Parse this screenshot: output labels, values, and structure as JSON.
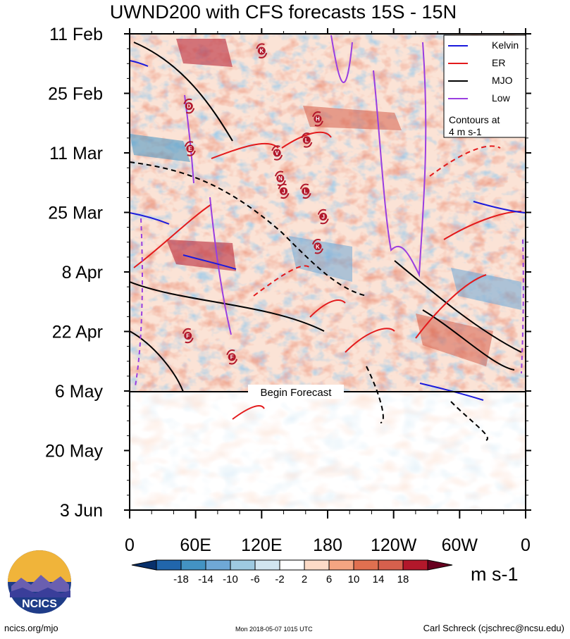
{
  "chart_data": {
    "type": "heatmap",
    "title": "UWND200 with CFS forecasts  15S - 15N",
    "xlabel": "",
    "ylabel": "",
    "x_ticks": [
      "0",
      "60E",
      "120E",
      "180",
      "120W",
      "60W",
      "0"
    ],
    "x_range": [
      0,
      360
    ],
    "y_ticks": [
      "11 Feb",
      "25 Feb",
      "11 Mar",
      "25 Mar",
      "8 Apr",
      "22 Apr",
      "6 May",
      "20 May",
      "3 Jun"
    ],
    "y_range_days": [
      0,
      112
    ],
    "forecast_start": "6 May",
    "forecast_label": "Begin Forecast",
    "units": "m s-1",
    "colorbar": {
      "levels": [
        "-18",
        "-14",
        "-10",
        "-6",
        "-2",
        "2",
        "6",
        "10",
        "14",
        "18"
      ],
      "colors": [
        "#08306b",
        "#2166ac",
        "#4393c3",
        "#6fa8d6",
        "#9ecae1",
        "#d1e5f0",
        "#ffffff",
        "#fddbc7",
        "#f4a582",
        "#e07050",
        "#d6604d",
        "#b2182b",
        "#67001f"
      ]
    },
    "legend": {
      "position": "top-right",
      "entries": [
        {
          "name": "Kelvin",
          "color": "#1a1adc"
        },
        {
          "name": "ER",
          "color": "#e31a1c"
        },
        {
          "name": "MJO",
          "color": "#000000"
        },
        {
          "name": "Low",
          "color": "#9a3ee0"
        }
      ],
      "note_line1": "Contours at",
      "note_line2": "4 m s-1"
    },
    "storm_markers": [
      {
        "label": "K",
        "lon": 120,
        "day": 4
      },
      {
        "label": "D",
        "lon": 54,
        "day": 17
      },
      {
        "label": "H",
        "lon": 171,
        "day": 20
      },
      {
        "label": "L",
        "lon": 161,
        "day": 25
      },
      {
        "label": "E",
        "lon": 55,
        "day": 27
      },
      {
        "label": "V",
        "lon": 134,
        "day": 28
      },
      {
        "label": "N",
        "lon": 137,
        "day": 34
      },
      {
        "label": "J",
        "lon": 140,
        "day": 37
      },
      {
        "label": "L",
        "lon": 160,
        "day": 37
      },
      {
        "label": "J",
        "lon": 176,
        "day": 43
      },
      {
        "label": "K",
        "lon": 171,
        "day": 50
      },
      {
        "label": "F",
        "lon": 53,
        "day": 71
      },
      {
        "label": "F",
        "lon": 93,
        "day": 76
      }
    ]
  },
  "logo": {
    "text": "NCICS"
  },
  "footer": {
    "left": "ncics.org/mjo",
    "middle": "Mon 2018-05-07 1015 UTC",
    "right": "Carl Schreck (cjschrec@ncsu.edu)"
  }
}
